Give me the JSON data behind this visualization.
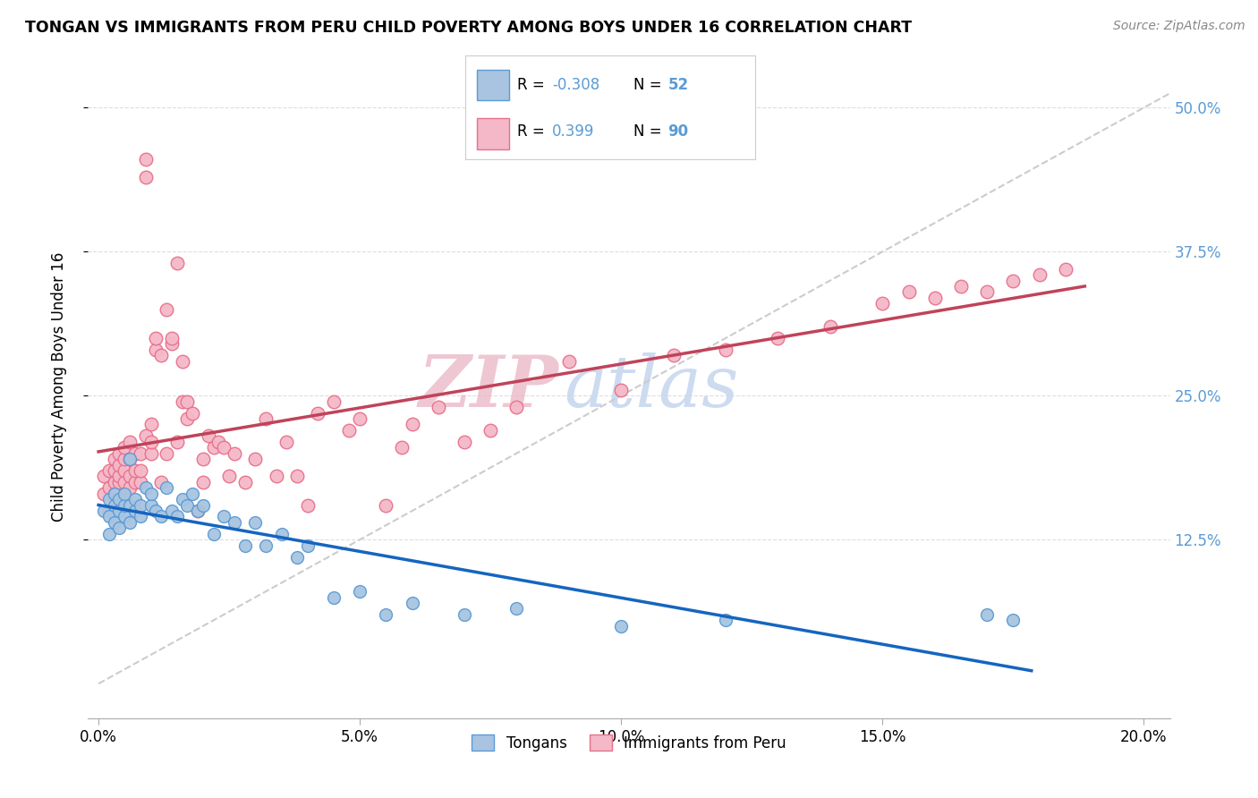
{
  "title": "TONGAN VS IMMIGRANTS FROM PERU CHILD POVERTY AMONG BOYS UNDER 16 CORRELATION CHART",
  "source": "Source: ZipAtlas.com",
  "ylabel": "Child Poverty Among Boys Under 16",
  "x_ticks": [
    0.0,
    0.05,
    0.1,
    0.15,
    0.2
  ],
  "x_ticklabels": [
    "0.0%",
    "5.0%",
    "10.0%",
    "15.0%",
    "20.0%"
  ],
  "y_ticks_right": [
    0.125,
    0.25,
    0.375,
    0.5
  ],
  "y_ticklabels_right": [
    "12.5%",
    "25.0%",
    "37.5%",
    "50.0%"
  ],
  "xlim": [
    -0.002,
    0.205
  ],
  "ylim": [
    -0.03,
    0.545
  ],
  "legend_blue_label": "Tongans",
  "legend_pink_label": "Immigrants from Peru",
  "r_blue": "-0.308",
  "n_blue": "52",
  "r_pink": "0.399",
  "n_pink": "90",
  "blue_scatter_x": [
    0.001,
    0.002,
    0.002,
    0.002,
    0.003,
    0.003,
    0.003,
    0.004,
    0.004,
    0.004,
    0.005,
    0.005,
    0.005,
    0.006,
    0.006,
    0.006,
    0.007,
    0.007,
    0.008,
    0.008,
    0.009,
    0.01,
    0.01,
    0.011,
    0.012,
    0.013,
    0.014,
    0.015,
    0.016,
    0.017,
    0.018,
    0.019,
    0.02,
    0.022,
    0.024,
    0.026,
    0.028,
    0.03,
    0.032,
    0.035,
    0.038,
    0.04,
    0.045,
    0.05,
    0.055,
    0.06,
    0.07,
    0.08,
    0.1,
    0.12,
    0.17,
    0.175
  ],
  "blue_scatter_y": [
    0.15,
    0.13,
    0.145,
    0.16,
    0.14,
    0.155,
    0.165,
    0.135,
    0.15,
    0.16,
    0.145,
    0.155,
    0.165,
    0.14,
    0.155,
    0.195,
    0.15,
    0.16,
    0.145,
    0.155,
    0.17,
    0.155,
    0.165,
    0.15,
    0.145,
    0.17,
    0.15,
    0.145,
    0.16,
    0.155,
    0.165,
    0.15,
    0.155,
    0.13,
    0.145,
    0.14,
    0.12,
    0.14,
    0.12,
    0.13,
    0.11,
    0.12,
    0.075,
    0.08,
    0.06,
    0.07,
    0.06,
    0.065,
    0.05,
    0.055,
    0.06,
    0.055
  ],
  "pink_scatter_x": [
    0.001,
    0.001,
    0.002,
    0.002,
    0.002,
    0.003,
    0.003,
    0.003,
    0.003,
    0.004,
    0.004,
    0.004,
    0.004,
    0.005,
    0.005,
    0.005,
    0.005,
    0.005,
    0.006,
    0.006,
    0.006,
    0.006,
    0.007,
    0.007,
    0.007,
    0.008,
    0.008,
    0.008,
    0.009,
    0.009,
    0.009,
    0.01,
    0.01,
    0.01,
    0.011,
    0.011,
    0.012,
    0.012,
    0.013,
    0.013,
    0.014,
    0.014,
    0.015,
    0.015,
    0.016,
    0.016,
    0.017,
    0.017,
    0.018,
    0.019,
    0.02,
    0.02,
    0.021,
    0.022,
    0.023,
    0.024,
    0.025,
    0.026,
    0.028,
    0.03,
    0.032,
    0.034,
    0.036,
    0.038,
    0.04,
    0.042,
    0.045,
    0.048,
    0.05,
    0.055,
    0.058,
    0.06,
    0.065,
    0.07,
    0.075,
    0.08,
    0.09,
    0.1,
    0.11,
    0.12,
    0.13,
    0.14,
    0.15,
    0.155,
    0.16,
    0.165,
    0.17,
    0.175,
    0.18,
    0.185
  ],
  "pink_scatter_y": [
    0.165,
    0.18,
    0.15,
    0.17,
    0.185,
    0.165,
    0.175,
    0.185,
    0.195,
    0.175,
    0.18,
    0.19,
    0.2,
    0.165,
    0.175,
    0.185,
    0.195,
    0.205,
    0.17,
    0.18,
    0.195,
    0.21,
    0.175,
    0.185,
    0.2,
    0.175,
    0.185,
    0.2,
    0.44,
    0.455,
    0.215,
    0.2,
    0.225,
    0.21,
    0.29,
    0.3,
    0.175,
    0.285,
    0.325,
    0.2,
    0.295,
    0.3,
    0.365,
    0.21,
    0.28,
    0.245,
    0.23,
    0.245,
    0.235,
    0.15,
    0.195,
    0.175,
    0.215,
    0.205,
    0.21,
    0.205,
    0.18,
    0.2,
    0.175,
    0.195,
    0.23,
    0.18,
    0.21,
    0.18,
    0.155,
    0.235,
    0.245,
    0.22,
    0.23,
    0.155,
    0.205,
    0.225,
    0.24,
    0.21,
    0.22,
    0.24,
    0.28,
    0.255,
    0.285,
    0.29,
    0.3,
    0.31,
    0.33,
    0.34,
    0.335,
    0.345,
    0.34,
    0.35,
    0.355,
    0.36
  ],
  "blue_color": "#a8c4e0",
  "blue_edge_color": "#5b9bd5",
  "pink_color": "#f4b8c8",
  "pink_edge_color": "#e8708a",
  "trend_blue_color": "#1565c0",
  "trend_pink_color": "#c0435a",
  "dashed_line_color": "#cccccc",
  "background_color": "#ffffff",
  "grid_color": "#dddddd",
  "title_color": "#000000",
  "watermark_color": "#c8d8f0",
  "right_tick_color": "#5b9bd5",
  "legend_r_color": "#000000",
  "legend_val_color": "#5b9bd5"
}
